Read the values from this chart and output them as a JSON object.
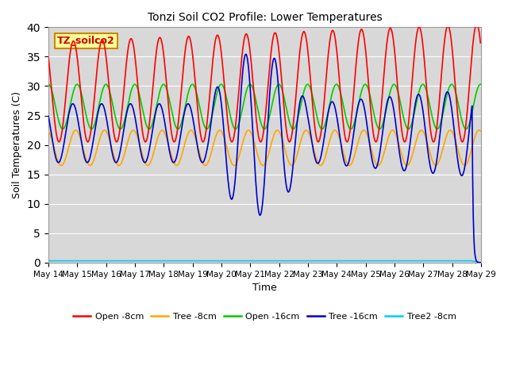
{
  "title": "Tonzi Soil CO2 Profile: Lower Temperatures",
  "xlabel": "Time",
  "ylabel": "Soil Temperatures (C)",
  "watermark": "TZ_soilco2",
  "ylim": [
    0,
    40
  ],
  "yticks": [
    0,
    5,
    10,
    15,
    20,
    25,
    30,
    35,
    40
  ],
  "plot_bg": "#d8d8d8",
  "fig_bg": "#ffffff",
  "legend_entries": [
    "Open -8cm",
    "Tree -8cm",
    "Open -16cm",
    "Tree -16cm",
    "Tree2 -8cm"
  ],
  "line_colors": [
    "#ff0000",
    "#ffa500",
    "#00cc00",
    "#0000cd",
    "#00ccff"
  ],
  "line_widths": [
    1.2,
    1.2,
    1.2,
    1.2,
    1.2
  ]
}
